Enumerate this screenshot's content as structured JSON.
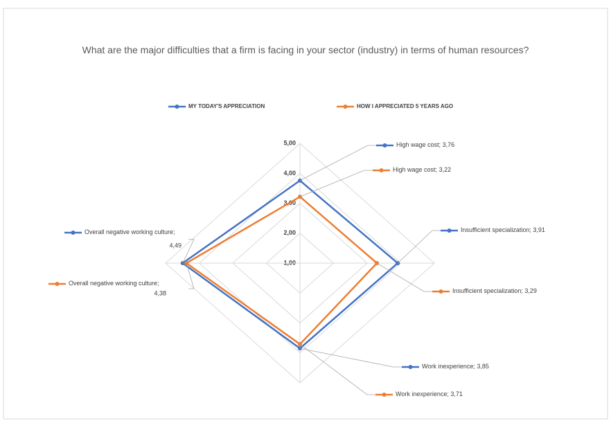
{
  "chart_data": {
    "type": "radar",
    "title": "What are the major difficulties that a firm is facing in your sector (industry) in terms of human resources?",
    "categories": [
      "High wage cost",
      "Insufficient specialization",
      "Work inexperience",
      "Overall negative working culture"
    ],
    "series": [
      {
        "name": "MY TODAY'S APPRECIATION",
        "color": "#4472c4",
        "values": [
          3.76,
          3.91,
          3.85,
          4.49
        ],
        "value_labels": [
          "3,76",
          "3,91",
          "3,85",
          "4,49"
        ]
      },
      {
        "name": "HOW I APPRECIATED 5 YEARS AGO",
        "color": "#ed7d31",
        "values": [
          3.22,
          3.29,
          3.71,
          4.38
        ],
        "value_labels": [
          "3,22",
          "3,29",
          "3,71",
          "4,38"
        ]
      }
    ],
    "ylim": [
      1,
      5
    ],
    "yticks": [
      {
        "value": 1,
        "label": "1,00"
      },
      {
        "value": 2,
        "label": "2,00"
      },
      {
        "value": 3,
        "label": "3,00"
      },
      {
        "value": 4,
        "label": "4,00"
      },
      {
        "value": 5,
        "label": "5,00"
      }
    ],
    "legend": "top"
  }
}
